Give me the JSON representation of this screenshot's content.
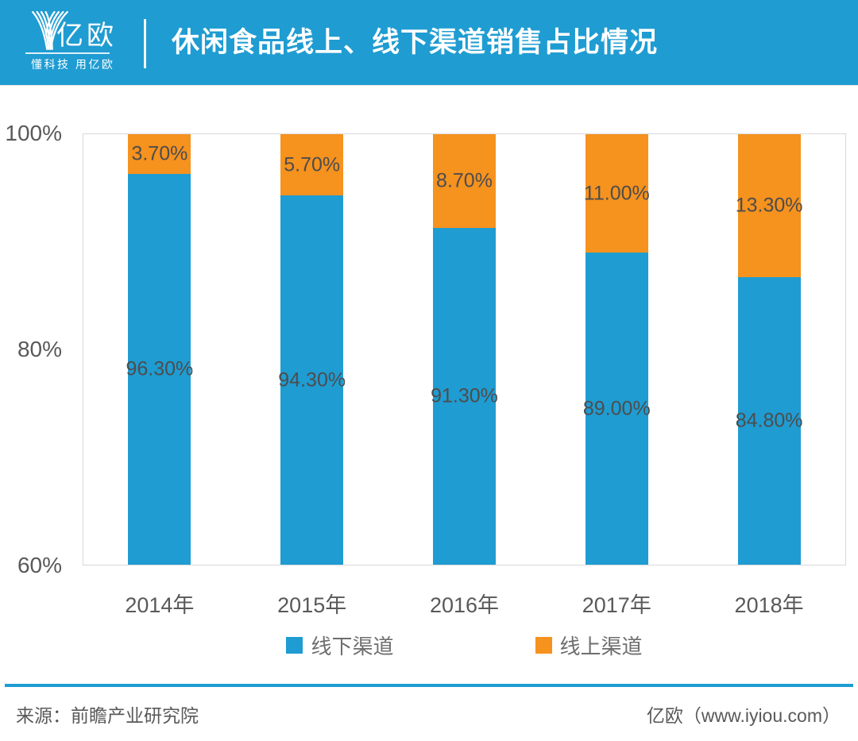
{
  "header": {
    "logo_text": "亿欧",
    "logo_tagline": "懂科技 用亿欧",
    "title": "休闲食品线上、线下渠道销售占比情况"
  },
  "colors": {
    "brand_blue": "#1F9CD2",
    "bar_blue": "#1F9CD2",
    "bar_orange": "#F6921E",
    "axis_border_gray": "#D9D9D9",
    "text_gray": "#595959",
    "data_label_gray": "#4D4D4D"
  },
  "chart_data": {
    "type": "bar",
    "stacked": true,
    "title": "休闲食品线上、线下渠道销售占比情况",
    "categories": [
      "2014年",
      "2015年",
      "2016年",
      "2017年",
      "2018年"
    ],
    "series": [
      {
        "name": "线下渠道",
        "color": "#1F9CD2",
        "values": [
          96.3,
          94.3,
          91.3,
          89.0,
          84.8
        ],
        "labels": [
          "96.30%",
          "94.30%",
          "91.30%",
          "89.00%",
          "84.80%"
        ]
      },
      {
        "name": "线上渠道",
        "color": "#F6921E",
        "values": [
          3.7,
          5.7,
          8.7,
          11.0,
          13.3
        ],
        "labels": [
          "3.70%",
          "5.70%",
          "8.70%",
          "11.00%",
          "13.30%"
        ]
      }
    ],
    "xlabel": "",
    "ylabel": "",
    "ylim": [
      60,
      100
    ],
    "yticks": [
      "100%",
      "80%",
      "60%"
    ],
    "grid": false,
    "legend_position": "bottom"
  },
  "footer": {
    "source": "来源：前瞻产业研究院",
    "credit": "亿欧（www.iyiou.com）"
  }
}
